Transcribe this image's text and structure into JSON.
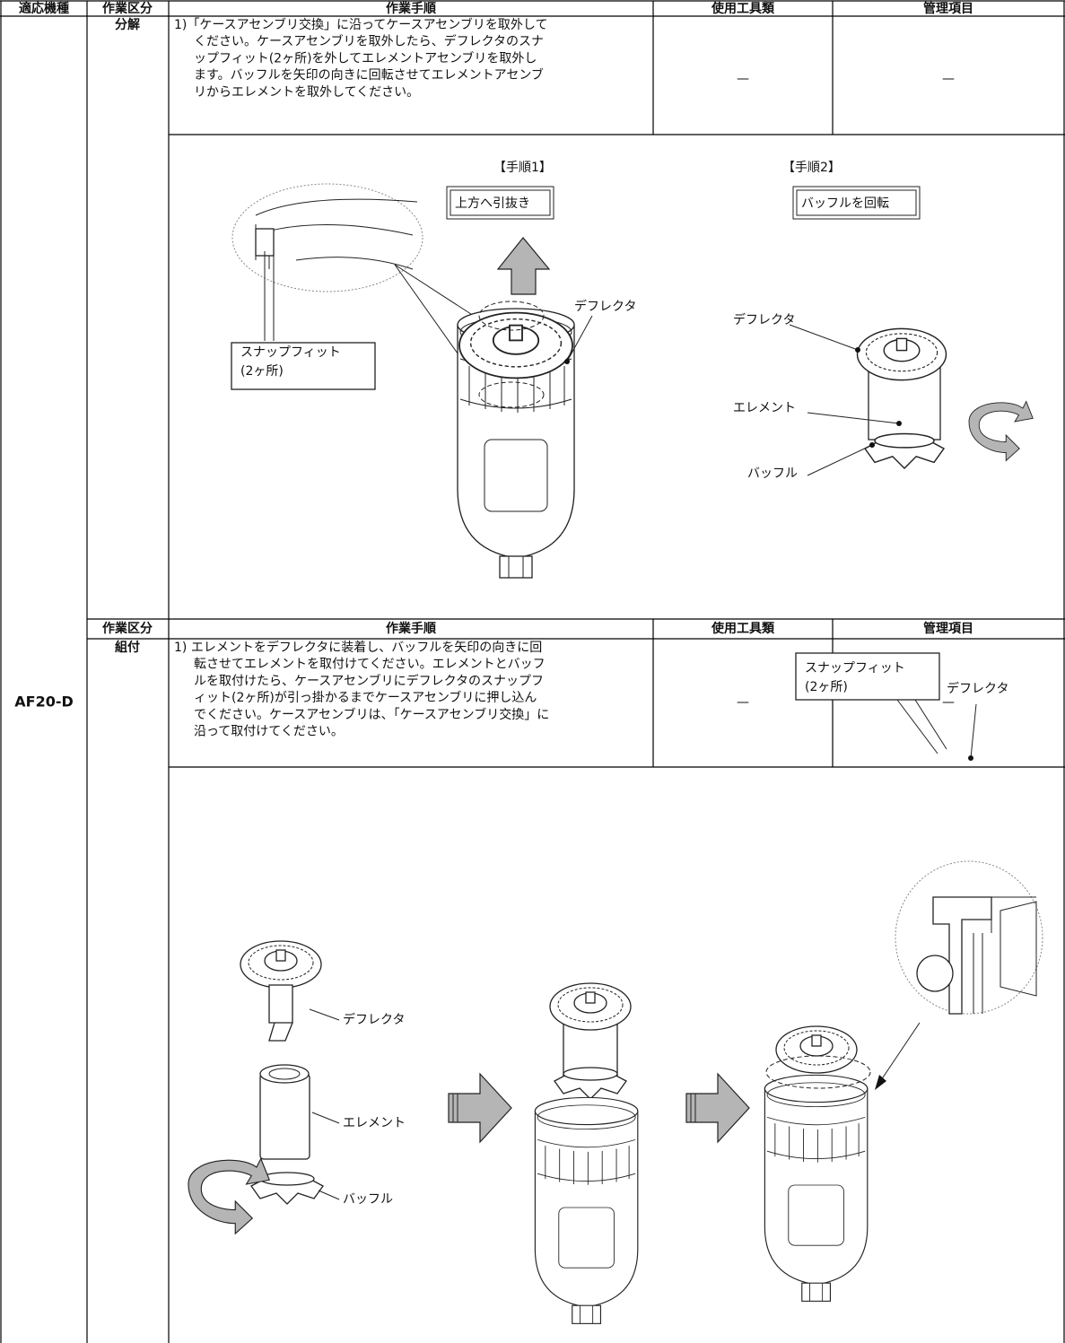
{
  "header": {
    "model": "適応機種",
    "category": "作業区分",
    "procedure": "作業手順",
    "tools": "使用工具類",
    "control": "管理項目"
  },
  "model": "AF20-D",
  "sections": [
    {
      "category": "分解",
      "procedure": [
        "1)「ケースアセンブリ交換」に沿ってケースアセンブリを取外して",
        "ください。ケースアセンブリを取外したら、デフレクタのスナ",
        "ップフィット(2ヶ所)を外してエレメントアセンブリを取外し",
        "ます。バッフルを矢印の向きに回転させてエレメントアセンブ",
        "リからエレメントを取外してください。"
      ],
      "tools": "—",
      "control": "—",
      "figure": {
        "step1": "【手順1】",
        "step1_action": "上方へ引抜き",
        "deflector": "デフレクタ",
        "snap_fit": "スナップフィット",
        "snap_fit_count": "(2ヶ所)",
        "step2": "【手順2】",
        "step2_action": "バッフルを回転",
        "deflector2": "デフレクタ",
        "element": "エレメント",
        "baffle": "バッフル"
      }
    },
    {
      "header": {
        "category": "作業区分",
        "procedure": "作業手順",
        "tools": "使用工具類",
        "control": "管理項目"
      },
      "category": "組付",
      "procedure": [
        "1) エレメントをデフレクタに装着し、バッフルを矢印の向きに回",
        "転させてエレメントを取付けてください。エレメントとバッフ",
        "ルを取付けたら、ケースアセンブリにデフレクタのスナップフ",
        "ィット(2ヶ所)が引っ掛かるまでケースアセンブリに押し込ん",
        "でください。ケースアセンブリは、「ケースアセンブリ交換」に",
        "沿って取付けてください。"
      ],
      "tools": "—",
      "control": "—",
      "figure": {
        "snap_fit": "スナップフィット",
        "snap_fit_count": "(2ヶ所)",
        "deflector_zoom": "デフレクタ",
        "deflector": "デフレクタ",
        "element": "エレメント",
        "baffle": "バッフル"
      }
    }
  ]
}
